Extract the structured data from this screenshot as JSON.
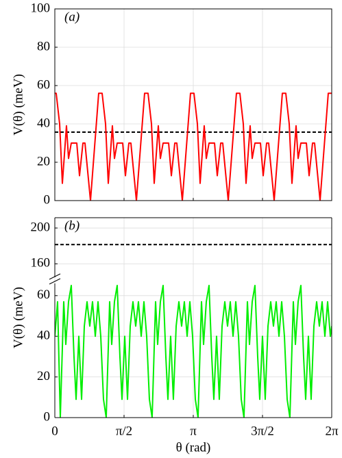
{
  "chart_data": [
    {
      "type": "line",
      "annotation": "(a)",
      "y_label": "V(θ) (meV)",
      "color": "#ff0000",
      "xlim": [
        0,
        6.2832
      ],
      "xticks": [
        0,
        1.5708,
        3.1416,
        4.7124,
        6.2832
      ],
      "show_xtick_labels": false,
      "ylim": [
        0,
        100
      ],
      "yticks": [
        0,
        20,
        40,
        60,
        80,
        100
      ],
      "grid": true,
      "hline": 35.7,
      "hline_style": "dashed",
      "hline_color": "#000000",
      "x": [
        0,
        0.031,
        0.109,
        0.171,
        0.264,
        0.311,
        0.373,
        0.498,
        0.56,
        0.638,
        0.684,
        0.809,
        0.995,
        1.073,
        1.151,
        1.213,
        1.306,
        1.353,
        1.415,
        1.54,
        1.602,
        1.68,
        1.726,
        1.851,
        2.037,
        2.115,
        2.193,
        2.255,
        2.348,
        2.395,
        2.457,
        2.582,
        2.644,
        2.722,
        2.768,
        2.893,
        3.079,
        3.157,
        3.235,
        3.297,
        3.39,
        3.437,
        3.499,
        3.624,
        3.686,
        3.764,
        3.81,
        3.935,
        4.121,
        4.199,
        4.277,
        4.339,
        4.432,
        4.479,
        4.541,
        4.666,
        4.728,
        4.806,
        4.852,
        4.977,
        5.163,
        5.241,
        5.319,
        5.381,
        5.474,
        5.521,
        5.583,
        5.708,
        5.77,
        5.848,
        5.894,
        6.019,
        6.205,
        6.283
      ],
      "values": [
        56,
        56,
        40,
        9,
        39,
        22,
        30,
        30,
        13,
        30,
        30,
        0,
        56,
        56,
        40,
        9,
        39,
        22,
        30,
        30,
        13,
        30,
        30,
        0,
        56,
        56,
        40,
        9,
        39,
        22,
        30,
        30,
        13,
        30,
        30,
        0,
        56,
        56,
        40,
        9,
        39,
        22,
        30,
        30,
        13,
        30,
        30,
        0,
        56,
        56,
        40,
        9,
        39,
        22,
        30,
        30,
        13,
        30,
        30,
        0,
        56,
        56,
        40,
        9,
        39,
        22,
        30,
        30,
        13,
        30,
        30,
        0,
        56,
        56
      ]
    },
    {
      "type": "line",
      "annotation": "(b)",
      "y_label": "V(θ) (meV)",
      "x_label": "θ (rad)",
      "color": "#00ee00",
      "xlim": [
        0,
        6.2832
      ],
      "xticks": [
        0,
        {
          "value": 1.5708,
          "label": "π/2"
        },
        {
          "value": 3.1416,
          "label": "π"
        },
        {
          "value": 4.7124,
          "label": "3π/2"
        },
        {
          "value": 6.2832,
          "label": "2π"
        }
      ],
      "show_xtick_labels": true,
      "ylim": [
        0,
        66
      ],
      "yticks": [
        0,
        20,
        40,
        60
      ],
      "ylim_break": [
        145,
        211.5
      ],
      "yticks_break": [
        160,
        200
      ],
      "grid": true,
      "hline": 181.5,
      "hline_style": "dashed",
      "hline_color": "#000000",
      "x": [
        0,
        0.062,
        0.124,
        0.202,
        0.249,
        0.311,
        0.373,
        0.435,
        0.482,
        0.544,
        0.607,
        0.669,
        0.731,
        0.793,
        0.855,
        0.918,
        0.98,
        1.042,
        1.104,
        1.166,
        1.244,
        1.291,
        1.353,
        1.415,
        1.477,
        1.524,
        1.586,
        1.649,
        1.711,
        1.773,
        1.835,
        1.897,
        1.96,
        2.022,
        2.084,
        2.146,
        2.208,
        2.286,
        2.333,
        2.395,
        2.457,
        2.519,
        2.566,
        2.628,
        2.69,
        2.753,
        2.815,
        2.877,
        2.939,
        3.002,
        3.064,
        3.126,
        3.188,
        3.25,
        3.328,
        3.375,
        3.437,
        3.499,
        3.561,
        3.608,
        3.67,
        3.732,
        3.795,
        3.857,
        3.919,
        3.981,
        4.044,
        4.106,
        4.168,
        4.23,
        4.292,
        4.37,
        4.417,
        4.479,
        4.541,
        4.603,
        4.65,
        4.712,
        4.774,
        4.837,
        4.899,
        4.961,
        5.023,
        5.086,
        5.148,
        5.21,
        5.272,
        5.334,
        5.412,
        5.459,
        5.521,
        5.583,
        5.645,
        5.692,
        5.754,
        5.816,
        5.879,
        5.941,
        6.003,
        6.065,
        6.128,
        6.19,
        6.252,
        6.283
      ],
      "values": [
        40,
        57,
        0,
        57,
        36,
        57,
        65,
        30,
        9,
        40,
        9,
        45,
        57,
        45,
        57,
        40,
        57,
        40,
        9,
        0,
        57,
        36,
        57,
        65,
        30,
        9,
        40,
        9,
        45,
        57,
        45,
        57,
        40,
        57,
        40,
        9,
        0,
        57,
        36,
        57,
        65,
        30,
        9,
        40,
        9,
        45,
        57,
        45,
        57,
        40,
        57,
        40,
        9,
        0,
        57,
        36,
        57,
        65,
        30,
        9,
        40,
        9,
        45,
        57,
        45,
        57,
        40,
        57,
        40,
        9,
        0,
        57,
        36,
        57,
        65,
        30,
        9,
        40,
        9,
        45,
        57,
        45,
        57,
        40,
        57,
        40,
        9,
        0,
        57,
        36,
        57,
        65,
        30,
        9,
        40,
        9,
        45,
        57,
        45,
        57,
        40,
        57,
        40,
        45
      ]
    }
  ]
}
